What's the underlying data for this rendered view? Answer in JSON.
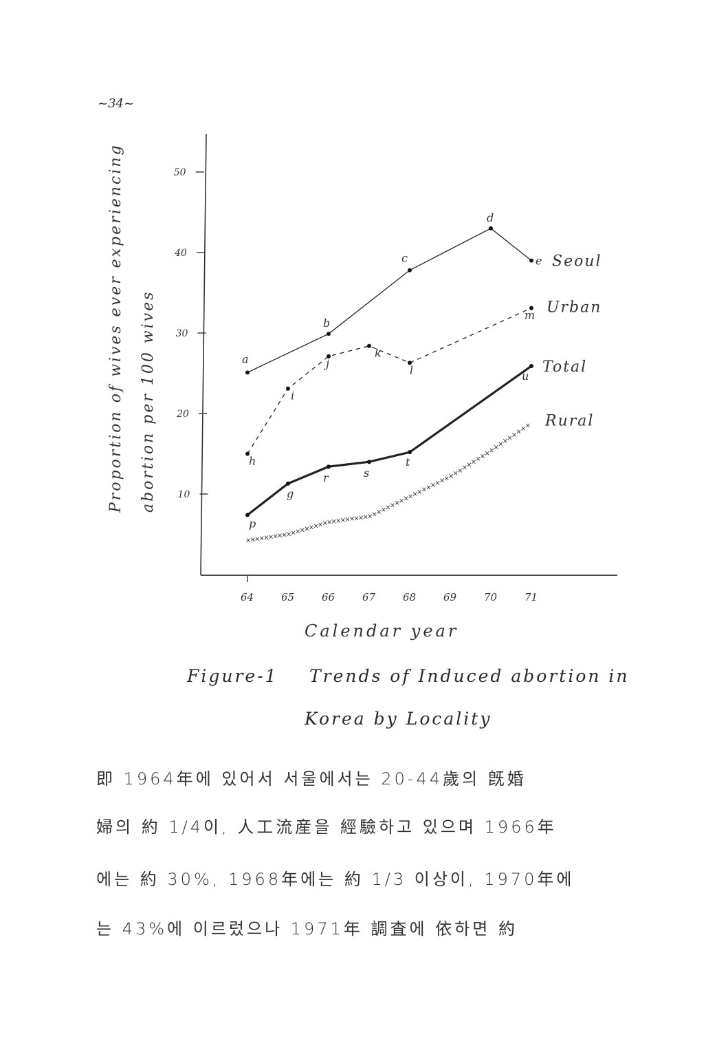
{
  "page_number": "~34~",
  "chart_data": {
    "type": "line",
    "title": "",
    "xlabel": "Calendar year",
    "ylabel": [
      "Proportion of wives ever experiencing",
      "abortion per 100 wives"
    ],
    "x_ticks": [
      "64",
      "65",
      "66",
      "67",
      "68",
      "69",
      "70",
      "71"
    ],
    "y_ticks": [
      10,
      20,
      30,
      40,
      50
    ],
    "xlim": [
      63,
      73
    ],
    "ylim": [
      0,
      55
    ],
    "grid": false,
    "legend": "inline labels at right end of each line",
    "series": [
      {
        "name": "Seoul",
        "style": "solid",
        "x": [
          64,
          66,
          68,
          70,
          71
        ],
        "values": [
          25.1,
          29.9,
          37.8,
          43.0,
          39.0
        ],
        "point_labels": [
          "a",
          "b",
          "c",
          "d",
          "e"
        ]
      },
      {
        "name": "Urban",
        "style": "dashed",
        "x": [
          64,
          65,
          66,
          67,
          68,
          71
        ],
        "values": [
          15.0,
          23.1,
          27.1,
          28.4,
          26.3,
          33.1
        ],
        "point_labels": [
          "h",
          "i",
          "j",
          "k",
          "l",
          "m"
        ]
      },
      {
        "name": "Total",
        "style": "thick",
        "x": [
          64,
          65,
          66,
          67,
          68,
          71
        ],
        "values": [
          7.4,
          11.3,
          13.4,
          14.0,
          15.2,
          25.9
        ],
        "point_labels": [
          "p",
          "g",
          "r",
          "s",
          "t",
          "u"
        ]
      },
      {
        "name": "Rural",
        "style": "x-marks",
        "x": [
          64,
          65,
          66,
          67,
          68,
          69,
          70,
          71
        ],
        "values": [
          4.3,
          5.1,
          6.6,
          7.3,
          9.8,
          12.3,
          15.5,
          19.0
        ],
        "point_labels": []
      }
    ]
  },
  "caption": {
    "line1_label": "Figure-1",
    "line1_text": "Trends of Induced abortion in",
    "line2_text": "Korea by Locality"
  },
  "body_text": [
    "即 1964年에 있어서 서울에서는 20-44歲의 旣婚",
    "婦의 約 1/4이, 人工流産을 經驗하고 있으며 1966年",
    "에는 約 30%, 1968年에는 約 1/3 이상이, 1970年에",
    "는 43%에 이르렀으나 1971年 調査에 依하면 約"
  ]
}
